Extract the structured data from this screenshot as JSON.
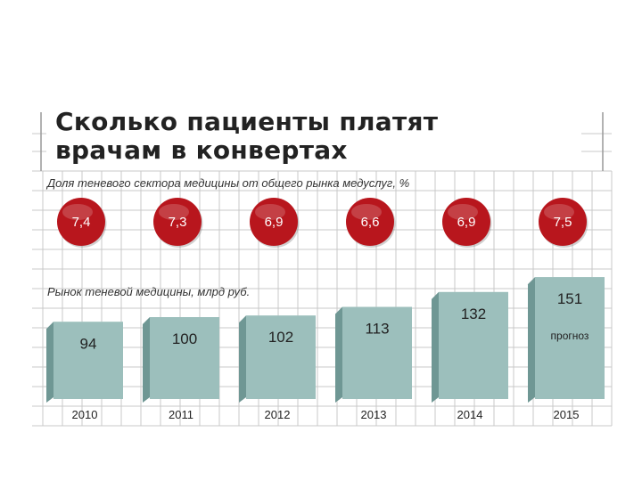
{
  "chart_data": {
    "type": "bar",
    "title": [
      "Сколько пациенты платят",
      "врачам в конвертах"
    ],
    "share_subtitle": "Доля теневого сектора медицины от общего рынка медуслуг, %",
    "market_subtitle": "Рынок теневой медицины, млрд руб.",
    "categories": [
      "2010",
      "2011",
      "2012",
      "2013",
      "2014",
      "2015"
    ],
    "share_labels": [
      "7,4",
      "7,3",
      "6,9",
      "6,6",
      "6,9",
      "7,5"
    ],
    "share_values": [
      7.4,
      7.3,
      6.9,
      6.6,
      6.9,
      7.5
    ],
    "values": [
      94,
      100,
      102,
      113,
      132,
      151
    ],
    "forecast_note": "прогноз",
    "forecast_index": 5,
    "ylabel": "млрд руб.",
    "ylim": [
      0,
      170
    ]
  },
  "colors": {
    "bar_face": "#9cbfbc",
    "bar_side": "#6f9794",
    "bar_top": "#c3d9d6",
    "circle": "#b8161d",
    "grid": "#c8c8c8"
  }
}
